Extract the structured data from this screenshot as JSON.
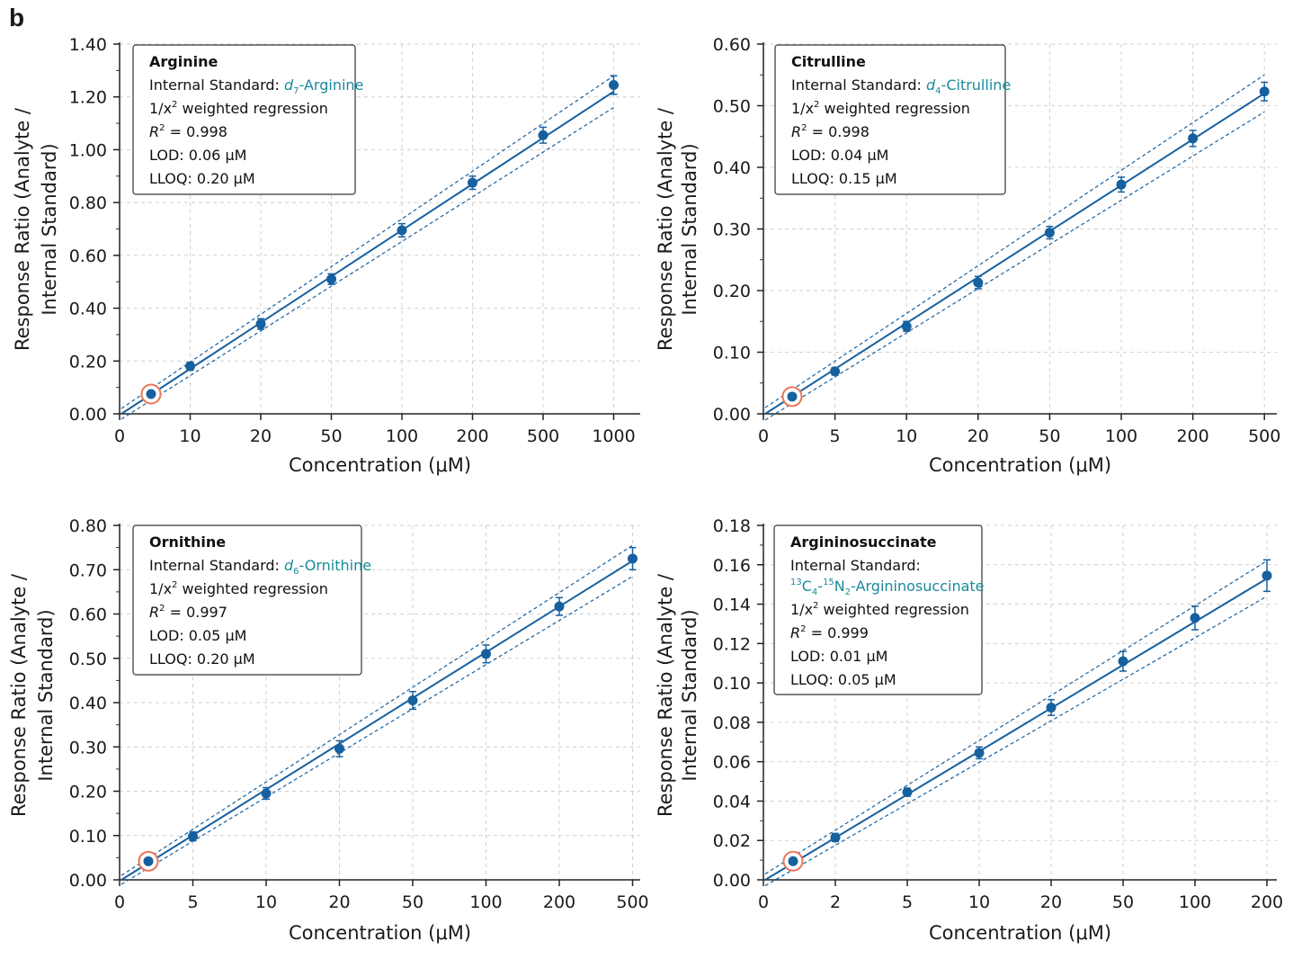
{
  "panel_label": "b",
  "colors": {
    "series": "#17609f",
    "lod_marker": "#e8765a",
    "accent_text": "#1a8a9c",
    "grid": "#d0d0d0"
  },
  "chart_data": [
    {
      "type": "scatter",
      "title": "Arginine",
      "xlabel": "Concentration (μM)",
      "ylabel_lines": [
        "Response Ratio (Analyte /",
        "Internal Standard)"
      ],
      "x_scale": "categorical",
      "x_ticks": [
        "0",
        "10",
        "20",
        "50",
        "100",
        "200",
        "500",
        "1000"
      ],
      "y_ticks": [
        "0.00",
        "0.20",
        "0.40",
        "0.60",
        "0.80",
        "1.00",
        "1.20",
        "1.40"
      ],
      "ylim": [
        0,
        1.4
      ],
      "points": [
        {
          "x": "5",
          "y": 0.075,
          "err": 0.0,
          "lod": true
        },
        {
          "x": "10",
          "y": 0.18,
          "err": 0.015
        },
        {
          "x": "20",
          "y": 0.34,
          "err": 0.02
        },
        {
          "x": "50",
          "y": 0.51,
          "err": 0.02
        },
        {
          "x": "100",
          "y": 0.695,
          "err": 0.025
        },
        {
          "x": "200",
          "y": 0.875,
          "err": 0.025
        },
        {
          "x": "500",
          "y": 1.055,
          "err": 0.03
        },
        {
          "x": "1000",
          "y": 1.245,
          "err": 0.035
        }
      ],
      "fit": {
        "y_start": 0.0,
        "y_end": 1.22
      },
      "ci_upper": {
        "y_start": 0.02,
        "y_end": 1.28
      },
      "ci_lower": {
        "y_start": -0.02,
        "y_end": 1.16
      },
      "info": {
        "name": "Arginine",
        "is_prefix": "Internal Standard: ",
        "is_italic": "d",
        "is_sub": "7",
        "is_suffix": "-Arginine",
        "regression_pre": "1/x",
        "regression_sup": "2",
        "regression_post": " weighted regression",
        "r2_value": " = 0.998",
        "lod": "LOD: 0.06 μM",
        "lloq": "LLOQ: 0.20 μM"
      }
    },
    {
      "type": "scatter",
      "title": "Citrulline",
      "xlabel": "Concentration (μM)",
      "ylabel_lines": [
        "Response Ratio (Analyte /",
        "Internal Standard)"
      ],
      "x_scale": "categorical",
      "x_ticks": [
        "0",
        "5",
        "10",
        "20",
        "50",
        "100",
        "200",
        "500"
      ],
      "y_ticks": [
        "0.00",
        "0.10",
        "0.20",
        "0.30",
        "0.40",
        "0.50",
        "0.60"
      ],
      "ylim": [
        0,
        0.6
      ],
      "points": [
        {
          "x": "2",
          "y": 0.028,
          "err": 0.0,
          "lod": true
        },
        {
          "x": "5",
          "y": 0.069,
          "err": 0.006
        },
        {
          "x": "10",
          "y": 0.142,
          "err": 0.008
        },
        {
          "x": "20",
          "y": 0.213,
          "err": 0.01
        },
        {
          "x": "50",
          "y": 0.294,
          "err": 0.01
        },
        {
          "x": "100",
          "y": 0.372,
          "err": 0.012
        },
        {
          "x": "200",
          "y": 0.447,
          "err": 0.013
        },
        {
          "x": "500",
          "y": 0.523,
          "err": 0.015
        }
      ],
      "fit": {
        "y_start": 0.0,
        "y_end": 0.52
      },
      "ci_upper": {
        "y_start": 0.01,
        "y_end": 0.55
      },
      "ci_lower": {
        "y_start": -0.01,
        "y_end": 0.49
      },
      "info": {
        "name": "Citrulline",
        "is_prefix": "Internal Standard: ",
        "is_italic": "d",
        "is_sub": "4",
        "is_suffix": "-Citrulline",
        "regression_pre": "1/x",
        "regression_sup": "2",
        "regression_post": " weighted regression",
        "r2_value": " = 0.998",
        "lod": "LOD: 0.04 μM",
        "lloq": "LLOQ: 0.15 μM"
      }
    },
    {
      "type": "scatter",
      "title": "Ornithine",
      "xlabel": "Concentration (μM)",
      "ylabel_lines": [
        "Response Ratio (Analyte /",
        "Internal Standard)"
      ],
      "x_scale": "categorical",
      "x_ticks": [
        "0",
        "5",
        "10",
        "20",
        "50",
        "100",
        "200",
        "500"
      ],
      "y_ticks": [
        "0.00",
        "0.10",
        "0.20",
        "0.30",
        "0.40",
        "0.50",
        "0.60",
        "0.70",
        "0.80"
      ],
      "ylim": [
        0,
        0.8
      ],
      "points": [
        {
          "x": "2",
          "y": 0.042,
          "err": 0.0,
          "lod": true
        },
        {
          "x": "5",
          "y": 0.098,
          "err": 0.01
        },
        {
          "x": "10",
          "y": 0.195,
          "err": 0.013
        },
        {
          "x": "20",
          "y": 0.296,
          "err": 0.018
        },
        {
          "x": "50",
          "y": 0.405,
          "err": 0.02
        },
        {
          "x": "100",
          "y": 0.51,
          "err": 0.02
        },
        {
          "x": "200",
          "y": 0.617,
          "err": 0.02
        },
        {
          "x": "500",
          "y": 0.725,
          "err": 0.025
        }
      ],
      "fit": {
        "y_start": 0.0,
        "y_end": 0.72
      },
      "ci_upper": {
        "y_start": 0.01,
        "y_end": 0.755
      },
      "ci_lower": {
        "y_start": -0.01,
        "y_end": 0.685
      },
      "info": {
        "name": "Ornithine",
        "is_prefix": "Internal Standard: ",
        "is_italic": "d",
        "is_sub": "6",
        "is_suffix": "-Ornithine",
        "regression_pre": "1/x",
        "regression_sup": "2",
        "regression_post": " weighted regression",
        "r2_value": " = 0.997",
        "lod": "LOD: 0.05 μM",
        "lloq": "LLOQ: 0.20 μM"
      }
    },
    {
      "type": "scatter",
      "title": "Argininosuccinate",
      "xlabel": "Concentration (μM)",
      "ylabel_lines": [
        "Response Ratio (Analyte /",
        "Internal Standard)"
      ],
      "x_scale": "categorical",
      "x_ticks": [
        "0",
        "2",
        "5",
        "10",
        "20",
        "50",
        "100",
        "200"
      ],
      "y_ticks": [
        "0.00",
        "0.02",
        "0.04",
        "0.06",
        "0.08",
        "0.10",
        "0.12",
        "0.14",
        "0.16",
        "0.18"
      ],
      "ylim": [
        0,
        0.18
      ],
      "points": [
        {
          "x": "1",
          "y": 0.0095,
          "err": 0.0,
          "lod": true
        },
        {
          "x": "2",
          "y": 0.0215,
          "err": 0.002
        },
        {
          "x": "5",
          "y": 0.0445,
          "err": 0.002
        },
        {
          "x": "10",
          "y": 0.0645,
          "err": 0.003
        },
        {
          "x": "20",
          "y": 0.0875,
          "err": 0.004
        },
        {
          "x": "50",
          "y": 0.111,
          "err": 0.005
        },
        {
          "x": "100",
          "y": 0.133,
          "err": 0.006
        },
        {
          "x": "200",
          "y": 0.1545,
          "err": 0.008
        }
      ],
      "fit": {
        "y_start": 0.0,
        "y_end": 0.153
      },
      "ci_upper": {
        "y_start": 0.003,
        "y_end": 0.162
      },
      "ci_lower": {
        "y_start": -0.003,
        "y_end": 0.144
      },
      "info": {
        "name": "Argininosuccinate",
        "is_prefix": "Internal Standard:",
        "iso_sup1": "13",
        "iso_c": "C",
        "iso_sub1": "4",
        "iso_dash": "-",
        "iso_sup2": "15",
        "iso_n": "N",
        "iso_sub2": "2",
        "is_suffix": "-Argininosuccinate",
        "regression_pre": "1/x",
        "regression_sup": "2",
        "regression_post": " weighted regression",
        "r2_value": " = 0.999",
        "lod": "LOD: 0.01 μM",
        "lloq": "LLOQ: 0.05 μM"
      }
    }
  ]
}
